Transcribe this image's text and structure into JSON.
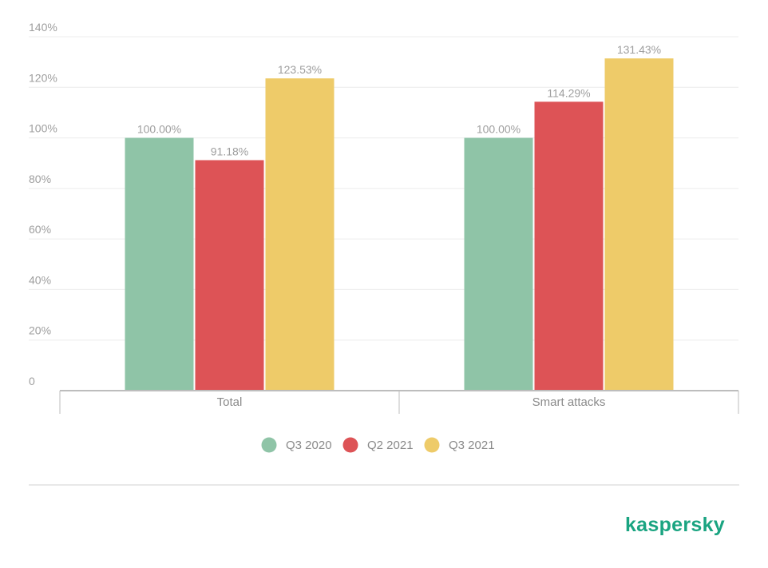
{
  "chart_data": {
    "type": "bar",
    "categories": [
      "Total",
      "Smart attacks"
    ],
    "series": [
      {
        "name": "Q3 2020",
        "color": "#8fc4a7",
        "values": [
          100.0,
          100.0
        ],
        "labels": [
          "100.00%",
          "100.00%"
        ]
      },
      {
        "name": "Q2 2021",
        "color": "#dd5356",
        "values": [
          91.18,
          114.29
        ],
        "labels": [
          "91.18%",
          "114.29%"
        ]
      },
      {
        "name": "Q3 2021",
        "color": "#eecb69",
        "values": [
          123.53,
          131.43
        ],
        "labels": [
          "123.53%",
          "131.43%"
        ]
      }
    ],
    "ylim": [
      0,
      140
    ],
    "yticks": [
      0,
      20,
      40,
      60,
      80,
      100,
      120,
      140
    ],
    "ytick_labels": [
      "0",
      "20%",
      "40%",
      "60%",
      "80%",
      "100%",
      "120%",
      "140%"
    ],
    "grid": true,
    "legend_position": "bottom-center"
  },
  "brand": {
    "logo_text": "kaspersky",
    "color": "#1aa481"
  }
}
